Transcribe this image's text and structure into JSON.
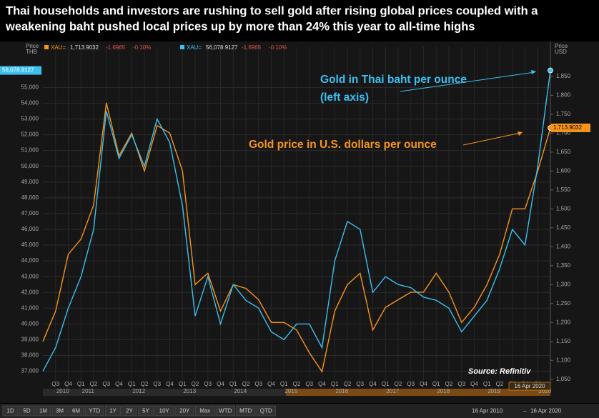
{
  "chart_data": {
    "type": "line",
    "title": [
      "Thai households and investors are rushing to sell gold after rising global prices coupled with a",
      "weakening baht pushed local prices up by more than 24% this year to all-time highs"
    ],
    "x": [
      "2010 Q2",
      "2010 Q3",
      "2010 Q4",
      "2011 Q1",
      "2011 Q2",
      "2011 Q3",
      "2011 Q4",
      "2012 Q1",
      "2012 Q2",
      "2012 Q3",
      "2012 Q4",
      "2013 Q1",
      "2013 Q2",
      "2013 Q3",
      "2013 Q4",
      "2014 Q1",
      "2014 Q2",
      "2014 Q3",
      "2014 Q4",
      "2015 Q1",
      "2015 Q2",
      "2015 Q3",
      "2015 Q4",
      "2016 Q1",
      "2016 Q2",
      "2016 Q3",
      "2016 Q4",
      "2017 Q1",
      "2017 Q2",
      "2017 Q3",
      "2017 Q4",
      "2018 Q1",
      "2018 Q2",
      "2018 Q3",
      "2018 Q4",
      "2019 Q1",
      "2019 Q2",
      "2019 Q3",
      "2019 Q4",
      "2020 Q1",
      "2020 Q2"
    ],
    "x_tick_labels": [
      "Q3",
      "Q4",
      "Q1",
      "Q2",
      "Q3",
      "Q4",
      "Q1",
      "Q2",
      "Q3",
      "Q4",
      "Q1",
      "Q2",
      "Q3",
      "Q4",
      "Q1",
      "Q2",
      "Q3",
      "Q4",
      "Q1",
      "Q2",
      "Q3",
      "Q4",
      "Q1",
      "Q2",
      "Q3",
      "Q4",
      "Q1",
      "Q2",
      "Q3",
      "Q4",
      "Q1",
      "Q2",
      "Q3",
      "Q4",
      "Q1",
      "Q2",
      "Q3",
      "Q4",
      "Q1"
    ],
    "x_year_labels": [
      "2010",
      "2011",
      "2012",
      "2013",
      "2014",
      "2015",
      "2016",
      "2017",
      "2018",
      "2019",
      "2020"
    ],
    "y_axis_header": [
      "Price",
      "THB"
    ],
    "y2_axis_header": [
      "Price",
      "USD"
    ],
    "ylim": [
      36300,
      57600
    ],
    "yticks": [
      {
        "value": 37000,
        "label": "37,000"
      },
      {
        "value": 38000,
        "label": "38,000"
      },
      {
        "value": 39000,
        "label": "39,000"
      },
      {
        "value": 40000,
        "label": "40,000"
      },
      {
        "value": 41000,
        "label": "41,000"
      },
      {
        "value": 42000,
        "label": "42,000"
      },
      {
        "value": 43000,
        "label": "43,000"
      },
      {
        "value": 44000,
        "label": "44,000"
      },
      {
        "value": 45000,
        "label": "45,000"
      },
      {
        "value": 46000,
        "label": "46,000"
      },
      {
        "value": 47000,
        "label": "47,000"
      },
      {
        "value": 48000,
        "label": "48,000"
      },
      {
        "value": 49000,
        "label": "49,000"
      },
      {
        "value": 50000,
        "label": "50,000"
      },
      {
        "value": 51000,
        "label": "51,000"
      },
      {
        "value": 52000,
        "label": "52,000"
      },
      {
        "value": 53000,
        "label": "53,000"
      },
      {
        "value": 54000,
        "label": "54,000"
      },
      {
        "value": 55000,
        "label": "55,000"
      }
    ],
    "y2lim": [
      1042,
      1929
    ],
    "y2ticks": [
      {
        "value": 1050,
        "label": "1,050"
      },
      {
        "value": 1100,
        "label": "1,100"
      },
      {
        "value": 1150,
        "label": "1,150"
      },
      {
        "value": 1200,
        "label": "1,200"
      },
      {
        "value": 1250,
        "label": "1,250"
      },
      {
        "value": 1300,
        "label": "1,300"
      },
      {
        "value": 1350,
        "label": "1,350"
      },
      {
        "value": 1400,
        "label": "1,400"
      },
      {
        "value": 1450,
        "label": "1,450"
      },
      {
        "value": 1500,
        "label": "1,500"
      },
      {
        "value": 1550,
        "label": "1,550"
      },
      {
        "value": 1600,
        "label": "1,600"
      },
      {
        "value": 1650,
        "label": "1,650"
      },
      {
        "value": 1700,
        "label": "1,700"
      },
      {
        "value": 1750,
        "label": "1,750"
      },
      {
        "value": 1800,
        "label": "1,800"
      },
      {
        "value": 1850,
        "label": "1,850"
      }
    ],
    "grid": true,
    "series": [
      {
        "name": "XAU=",
        "quote": [
          "1,713.9032",
          "-1.6965",
          "-0.10%"
        ],
        "color": "#f7941d",
        "axis": "y2",
        "values": [
          1150,
          1230,
          1380,
          1420,
          1510,
          1780,
          1640,
          1700,
          1600,
          1720,
          1700,
          1600,
          1300,
          1330,
          1230,
          1300,
          1290,
          1260,
          1200,
          1200,
          1180,
          1120,
          1070,
          1230,
          1300,
          1330,
          1180,
          1240,
          1260,
          1280,
          1280,
          1330,
          1280,
          1200,
          1240,
          1300,
          1380,
          1500,
          1500,
          1600,
          1713.9032
        ],
        "last_label": "1,713.9032"
      },
      {
        "name": "XAU=",
        "quote": [
          "56,078.9127",
          "-1.6965",
          "-0.10%"
        ],
        "color": "#3cc0f0",
        "axis": "y",
        "values": [
          37000,
          38500,
          41000,
          43000,
          46000,
          53500,
          50500,
          52000,
          50000,
          53000,
          51500,
          47500,
          40500,
          43000,
          40000,
          42500,
          41500,
          41000,
          39500,
          39000,
          40000,
          40000,
          38500,
          44000,
          46500,
          46000,
          42000,
          43000,
          42500,
          42300,
          41700,
          41500,
          41000,
          39500,
          40500,
          41500,
          43500,
          46000,
          45000,
          50000,
          56078.9127
        ],
        "last_label": "56,078.9127"
      }
    ],
    "annotations": [
      {
        "lines": [
          "Gold in Thai baht per ounce",
          "(left axis)"
        ],
        "color": "#3cc0f0"
      },
      {
        "lines": [
          "Gold price in U.S. dollars per ounce"
        ],
        "color": "#f7941d"
      }
    ],
    "source": "Source: Refinitiv",
    "current_date_label": "16 Apr 2020",
    "range_buttons": [
      "1D",
      "5D",
      "1M",
      "3M",
      "6M",
      "YTD",
      "1Y",
      "2Y",
      "5Y",
      "10Y",
      "20Y",
      "Max",
      "WTD",
      "MTD",
      "QTD"
    ],
    "selected_button": "10Y",
    "date_range": [
      "16 Apr 2010",
      "–",
      "16 Apr 2020"
    ]
  }
}
